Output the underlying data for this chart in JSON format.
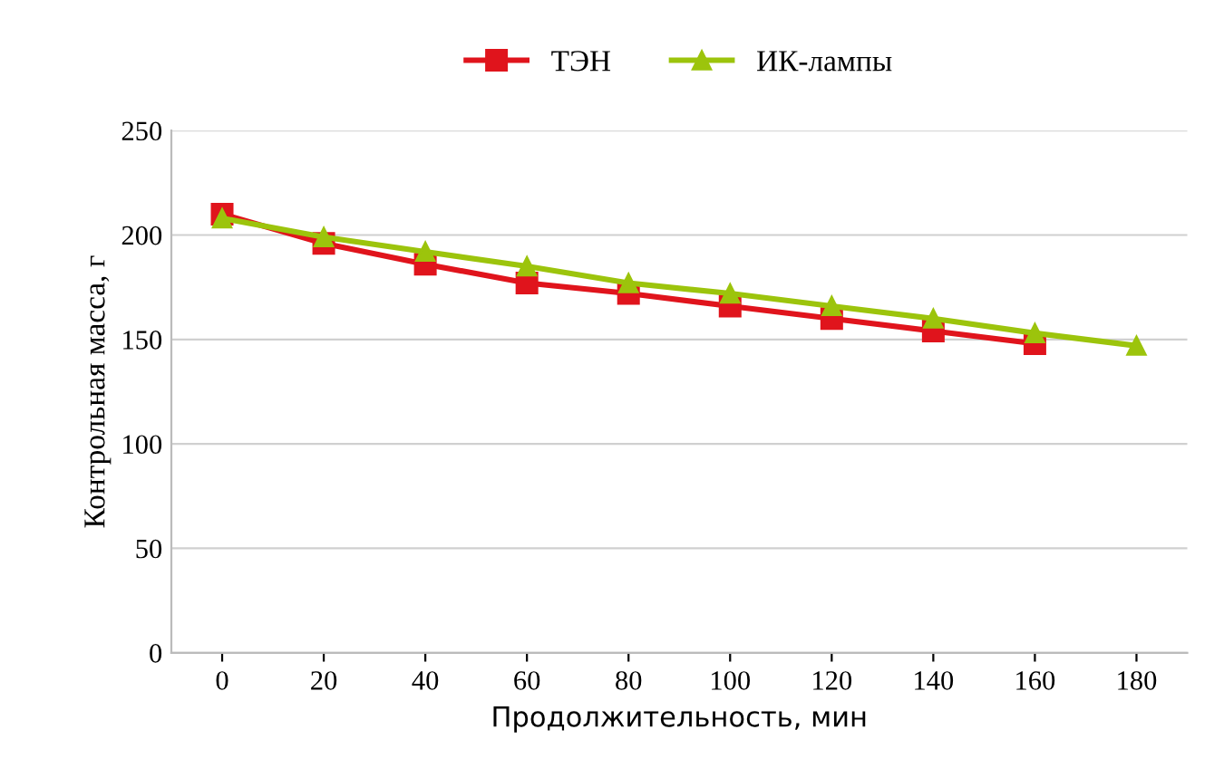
{
  "chart_data": {
    "type": "line",
    "xlabel": "Продолжительность, мин",
    "ylabel": "Контрольная масса, г",
    "categories": [
      "0",
      "20",
      "40",
      "60",
      "80",
      "100",
      "120",
      "140",
      "160",
      "180"
    ],
    "series": [
      {
        "name": "ТЭН",
        "color": "#e0141c",
        "marker": "square",
        "values": [
          210,
          196,
          186,
          177,
          172,
          166,
          160,
          154,
          148,
          null
        ]
      },
      {
        "name": "ИК-лампы",
        "color": "#9cc40c",
        "marker": "triangle",
        "values": [
          208,
          199,
          192,
          185,
          177,
          172,
          166,
          160,
          153,
          147
        ]
      }
    ],
    "ylim": [
      0,
      250
    ],
    "yticks": [
      0,
      50,
      100,
      150,
      200,
      250
    ],
    "grid": "y",
    "legend": "top"
  }
}
